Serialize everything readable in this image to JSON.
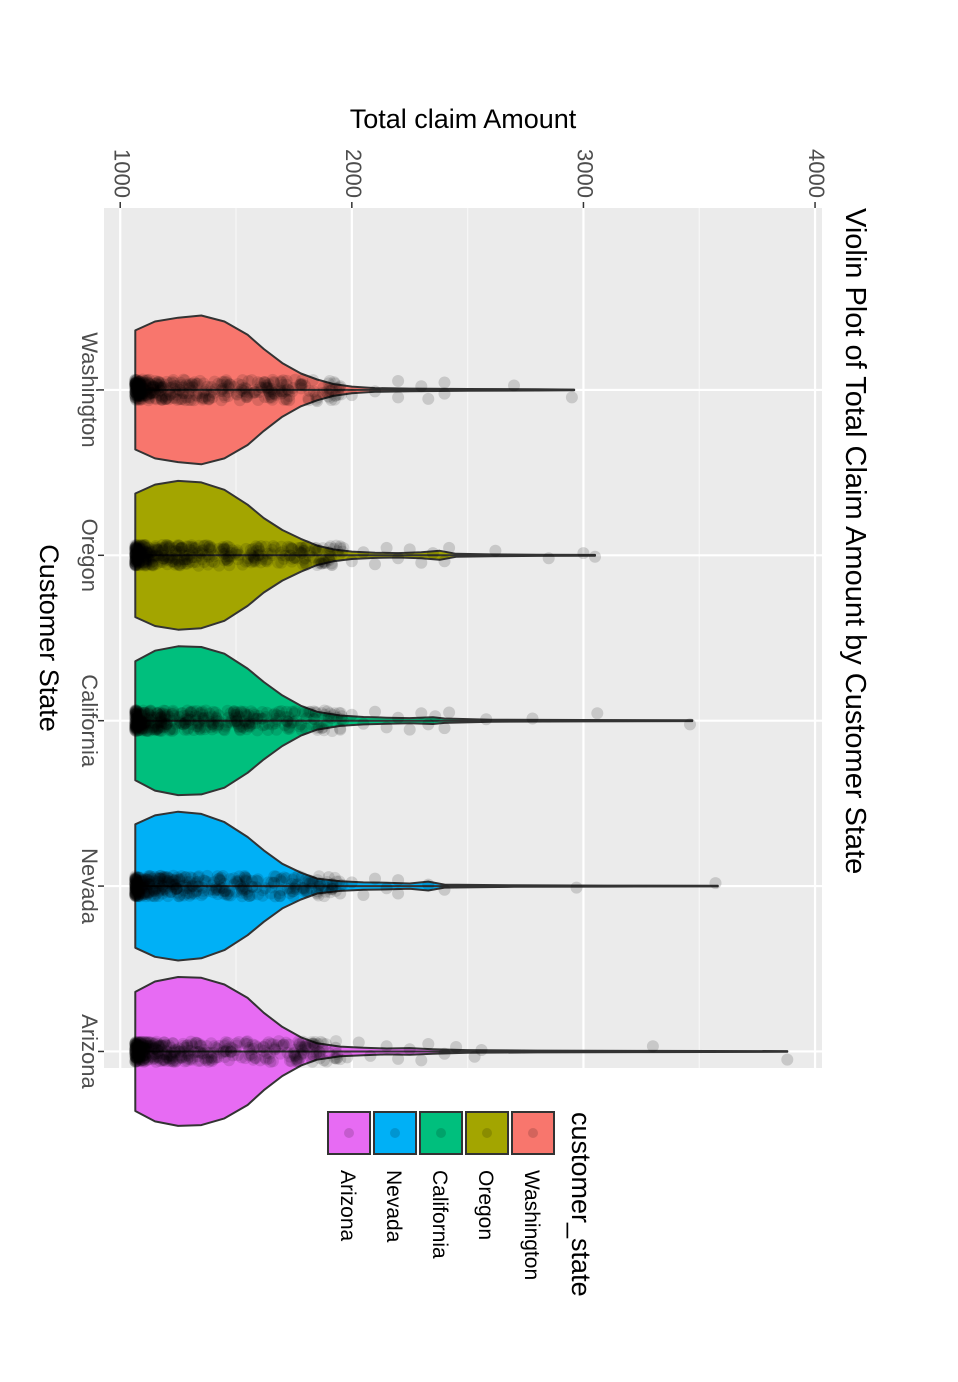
{
  "chart_data": {
    "type": "violin",
    "title": "Violin Plot of Total Claim Amount by Customer State",
    "xlabel": "Customer State",
    "ylabel": "Total claim Amount",
    "categories": [
      "Washington",
      "Oregon",
      "California",
      "Nevada",
      "Arizona"
    ],
    "y_ticks": [
      1000,
      2000,
      3000,
      4000
    ],
    "ylim": [
      930,
      4030
    ],
    "grid": true,
    "orientation": "rotated 90 degrees clockwise",
    "legend": {
      "title": "customer_state",
      "placement": "bottom",
      "entries": [
        "Washington",
        "Oregon",
        "California",
        "Nevada",
        "Arizona"
      ]
    },
    "series": [
      {
        "name": "Washington",
        "color": "#F8766D",
        "min": 1065,
        "max": 2960,
        "profile": [
          [
            1065,
            0.8
          ],
          [
            1150,
            0.92
          ],
          [
            1250,
            0.97
          ],
          [
            1350,
            1.0
          ],
          [
            1450,
            0.92
          ],
          [
            1550,
            0.74
          ],
          [
            1620,
            0.55
          ],
          [
            1700,
            0.36
          ],
          [
            1780,
            0.22
          ],
          [
            1850,
            0.14
          ],
          [
            1920,
            0.08
          ],
          [
            2000,
            0.045
          ],
          [
            2100,
            0.025
          ],
          [
            2250,
            0.018
          ],
          [
            2500,
            0.012
          ],
          [
            2800,
            0.008
          ],
          [
            2960,
            0.005
          ]
        ],
        "points": [
          [
            1780,
            -0.08
          ],
          [
            1850,
            0.15
          ],
          [
            1950,
            -0.05
          ],
          [
            2000,
            0.07
          ],
          [
            2100,
            0.02
          ],
          [
            2200,
            -0.12
          ],
          [
            2200,
            0.1
          ],
          [
            2300,
            -0.05
          ],
          [
            2330,
            0.12
          ],
          [
            2400,
            -0.1
          ],
          [
            2400,
            0.05
          ],
          [
            2700,
            -0.06
          ],
          [
            2950,
            0.1
          ]
        ]
      },
      {
        "name": "Oregon",
        "color": "#A3A500",
        "min": 1065,
        "max": 3050,
        "profile": [
          [
            1065,
            0.83
          ],
          [
            1150,
            0.95
          ],
          [
            1250,
            1.0
          ],
          [
            1350,
            0.98
          ],
          [
            1450,
            0.88
          ],
          [
            1550,
            0.68
          ],
          [
            1620,
            0.5
          ],
          [
            1700,
            0.34
          ],
          [
            1780,
            0.22
          ],
          [
            1850,
            0.13
          ],
          [
            1920,
            0.08
          ],
          [
            2000,
            0.05
          ],
          [
            2100,
            0.035
          ],
          [
            2200,
            0.03
          ],
          [
            2300,
            0.04
          ],
          [
            2380,
            0.06
          ],
          [
            2450,
            0.02
          ],
          [
            2600,
            0.012
          ],
          [
            2800,
            0.008
          ],
          [
            3050,
            0.005
          ]
        ],
        "points": [
          [
            1800,
            0.1
          ],
          [
            1850,
            -0.06
          ],
          [
            1900,
            0.05
          ],
          [
            1950,
            -0.12
          ],
          [
            2000,
            0.08
          ],
          [
            2050,
            -0.04
          ],
          [
            2100,
            0.12
          ],
          [
            2150,
            -0.1
          ],
          [
            2200,
            0.04
          ],
          [
            2250,
            -0.08
          ],
          [
            2300,
            0.1
          ],
          [
            2350,
            -0.03
          ],
          [
            2400,
            0.08
          ],
          [
            2420,
            -0.1
          ],
          [
            2620,
            -0.06
          ],
          [
            2850,
            0.04
          ],
          [
            3000,
            -0.03
          ],
          [
            3050,
            0.02
          ]
        ]
      },
      {
        "name": "California",
        "color": "#00BF7D",
        "min": 1065,
        "max": 3470,
        "profile": [
          [
            1065,
            0.8
          ],
          [
            1150,
            0.94
          ],
          [
            1250,
            1.0
          ],
          [
            1350,
            0.99
          ],
          [
            1450,
            0.9
          ],
          [
            1550,
            0.7
          ],
          [
            1620,
            0.52
          ],
          [
            1700,
            0.34
          ],
          [
            1780,
            0.2
          ],
          [
            1850,
            0.12
          ],
          [
            1950,
            0.07
          ],
          [
            2050,
            0.05
          ],
          [
            2150,
            0.04
          ],
          [
            2250,
            0.035
          ],
          [
            2350,
            0.045
          ],
          [
            2400,
            0.03
          ],
          [
            2600,
            0.014
          ],
          [
            3000,
            0.009
          ],
          [
            3470,
            0.005
          ]
        ],
        "points": [
          [
            1780,
            0.05
          ],
          [
            1820,
            -0.12
          ],
          [
            1870,
            0.1
          ],
          [
            1900,
            -0.05
          ],
          [
            1950,
            0.12
          ],
          [
            2000,
            -0.08
          ],
          [
            2050,
            0.04
          ],
          [
            2100,
            -0.12
          ],
          [
            2150,
            0.09
          ],
          [
            2200,
            -0.04
          ],
          [
            2250,
            0.12
          ],
          [
            2300,
            -0.1
          ],
          [
            2330,
            0.05
          ],
          [
            2360,
            -0.06
          ],
          [
            2400,
            0.1
          ],
          [
            2420,
            -0.11
          ],
          [
            2580,
            -0.02
          ],
          [
            2780,
            -0.03
          ],
          [
            3060,
            -0.1
          ],
          [
            3460,
            0.05
          ]
        ]
      },
      {
        "name": "Nevada",
        "color": "#00B0F6",
        "min": 1065,
        "max": 3580,
        "profile": [
          [
            1065,
            0.83
          ],
          [
            1150,
            0.95
          ],
          [
            1250,
            1.0
          ],
          [
            1350,
            0.97
          ],
          [
            1450,
            0.86
          ],
          [
            1550,
            0.66
          ],
          [
            1620,
            0.48
          ],
          [
            1700,
            0.3
          ],
          [
            1780,
            0.18
          ],
          [
            1850,
            0.1
          ],
          [
            1950,
            0.065
          ],
          [
            2050,
            0.05
          ],
          [
            2150,
            0.045
          ],
          [
            2250,
            0.035
          ],
          [
            2330,
            0.06
          ],
          [
            2400,
            0.02
          ],
          [
            2700,
            0.01
          ],
          [
            3100,
            0.007
          ],
          [
            3580,
            0.005
          ]
        ],
        "points": [
          [
            1800,
            -0.08
          ],
          [
            1850,
            0.07
          ],
          [
            1900,
            -0.12
          ],
          [
            1950,
            0.1
          ],
          [
            2000,
            -0.05
          ],
          [
            2050,
            0.12
          ],
          [
            2100,
            -0.1
          ],
          [
            2150,
            0.03
          ],
          [
            2200,
            -0.08
          ],
          [
            2200,
            0.1
          ],
          [
            2330,
            -0.02
          ],
          [
            2400,
            0.05
          ],
          [
            2970,
            0.02
          ],
          [
            3570,
            -0.04
          ]
        ]
      },
      {
        "name": "Arizona",
        "color": "#E76BF3",
        "min": 1065,
        "max": 3880,
        "profile": [
          [
            1065,
            0.8
          ],
          [
            1150,
            0.94
          ],
          [
            1250,
            1.0
          ],
          [
            1350,
            0.99
          ],
          [
            1450,
            0.9
          ],
          [
            1550,
            0.72
          ],
          [
            1620,
            0.52
          ],
          [
            1700,
            0.33
          ],
          [
            1780,
            0.19
          ],
          [
            1850,
            0.11
          ],
          [
            1950,
            0.065
          ],
          [
            2050,
            0.05
          ],
          [
            2150,
            0.04
          ],
          [
            2250,
            0.045
          ],
          [
            2350,
            0.03
          ],
          [
            2500,
            0.018
          ],
          [
            2800,
            0.012
          ],
          [
            3300,
            0.008
          ],
          [
            3880,
            0.005
          ]
        ],
        "points": [
          [
            1780,
            0.04
          ],
          [
            1830,
            -0.1
          ],
          [
            1880,
            0.12
          ],
          [
            1930,
            -0.05
          ],
          [
            1980,
            0.08
          ],
          [
            2030,
            -0.12
          ],
          [
            2080,
            0.06
          ],
          [
            2150,
            -0.07
          ],
          [
            2200,
            0.1
          ],
          [
            2250,
            -0.03
          ],
          [
            2300,
            0.12
          ],
          [
            2330,
            -0.1
          ],
          [
            2400,
            0.03
          ],
          [
            2450,
            -0.06
          ],
          [
            2530,
            0.07
          ],
          [
            2560,
            -0.02
          ],
          [
            3300,
            -0.07
          ],
          [
            3880,
            0.11
          ]
        ]
      }
    ]
  }
}
